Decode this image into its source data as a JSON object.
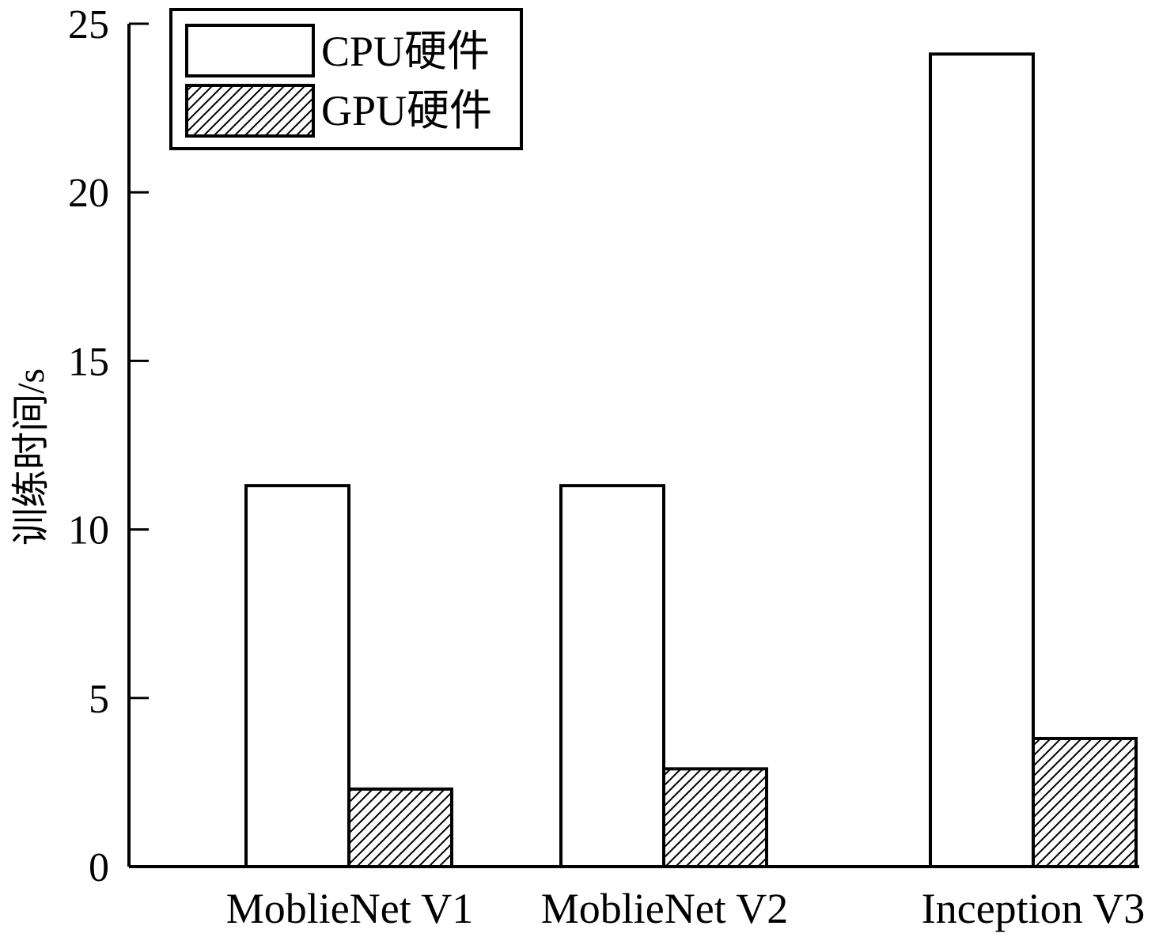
{
  "chart_data": {
    "type": "bar",
    "categories": [
      "MoblieNet V1",
      "MoblieNet V2",
      "Inception V3"
    ],
    "series": [
      {
        "name": "CPU硬件",
        "values": [
          11.3,
          11.3,
          24.1
        ],
        "pattern": "none"
      },
      {
        "name": "GPU硬件",
        "values": [
          2.3,
          2.9,
          3.8
        ],
        "pattern": "hatch"
      }
    ],
    "ylabel": "训练时间/s",
    "xlabel": "",
    "ylim": [
      0,
      25
    ],
    "yticks": [
      "0",
      "5",
      "10",
      "15",
      "20",
      "25"
    ],
    "grid": false,
    "legend_position": "top-left"
  },
  "colors": {
    "bar_fill": "#ffffff",
    "stroke": "#000000"
  }
}
